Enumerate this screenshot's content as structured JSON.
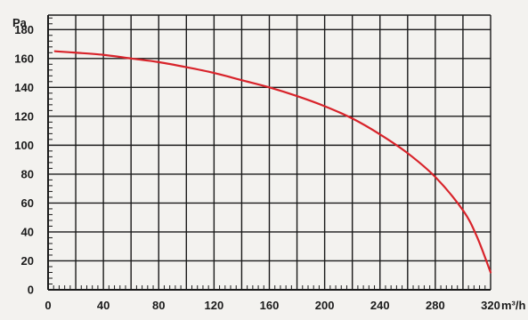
{
  "chart_data": {
    "type": "line",
    "title": "",
    "xlabel": "m³/h",
    "ylabel": "Pa",
    "xlim": [
      0,
      320
    ],
    "ylim": [
      0,
      190
    ],
    "x_ticks": [
      0,
      40,
      80,
      120,
      160,
      200,
      240,
      280,
      320
    ],
    "y_ticks": [
      0,
      20,
      40,
      60,
      80,
      100,
      120,
      140,
      160,
      180
    ],
    "grid": true,
    "series": [
      {
        "color": "#d8232a",
        "x": [
          5,
          20,
          40,
          60,
          80,
          100,
          120,
          140,
          160,
          180,
          200,
          220,
          240,
          260,
          280,
          300,
          310,
          320
        ],
        "y": [
          165,
          164,
          162.5,
          160,
          157.5,
          154,
          150,
          145,
          140,
          134,
          127,
          118.5,
          107.5,
          94.5,
          78,
          55,
          37,
          12
        ]
      }
    ]
  }
}
